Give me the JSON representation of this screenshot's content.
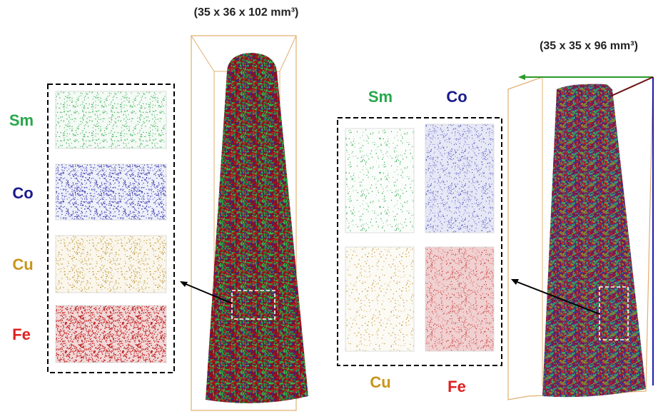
{
  "left": {
    "dimensions": "(35 x 36 x 102 mm³)",
    "labels": [
      "Sm",
      "Co",
      "Cu",
      "Fe"
    ]
  },
  "right": {
    "dimensions": "(35 x 35 x 96 mm³)",
    "labels": [
      "Sm",
      "Co",
      "Cu",
      "Fe"
    ]
  }
}
